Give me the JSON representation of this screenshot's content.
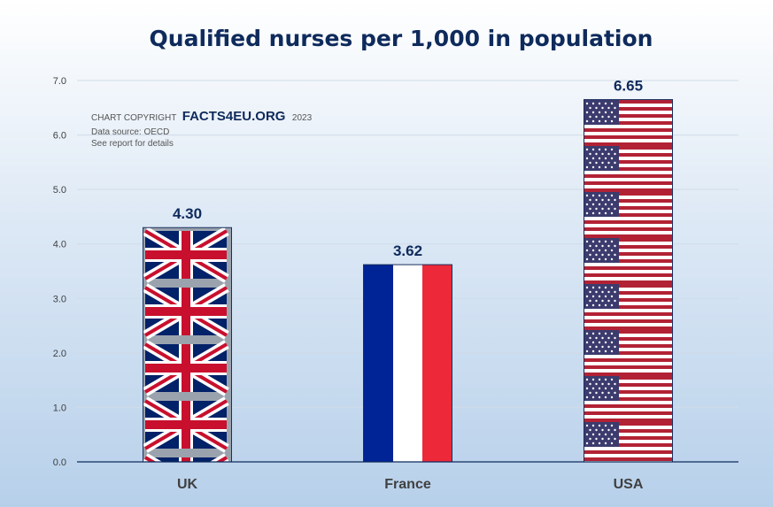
{
  "chart_data": {
    "type": "bar",
    "title": "Qualified nurses per 1,000 in population",
    "categories": [
      "UK",
      "France",
      "USA"
    ],
    "values": [
      4.3,
      3.62,
      6.65
    ],
    "data_labels": [
      "4.30",
      "3.62",
      "6.65"
    ],
    "ylim": [
      0,
      7
    ],
    "yticks": [
      "0.0",
      "1.0",
      "2.0",
      "3.0",
      "4.0",
      "5.0",
      "6.0",
      "7.0"
    ],
    "grid": true,
    "bar_fills": [
      "uk-flag",
      "france-flag",
      "usa-flag"
    ]
  },
  "credit": {
    "prefix": "CHART COPYRIGHT",
    "brand": "FACTS4EU.ORG",
    "year": "2023",
    "source": "Data source: OECD",
    "note": "See report for details"
  },
  "colors": {
    "title": "#0f2a5c",
    "uk_blue": "#012169",
    "uk_red": "#c8102e",
    "fr_blue": "#002395",
    "fr_red": "#ed2939",
    "us_blue": "#3c3b6e",
    "us_red": "#b22234"
  }
}
